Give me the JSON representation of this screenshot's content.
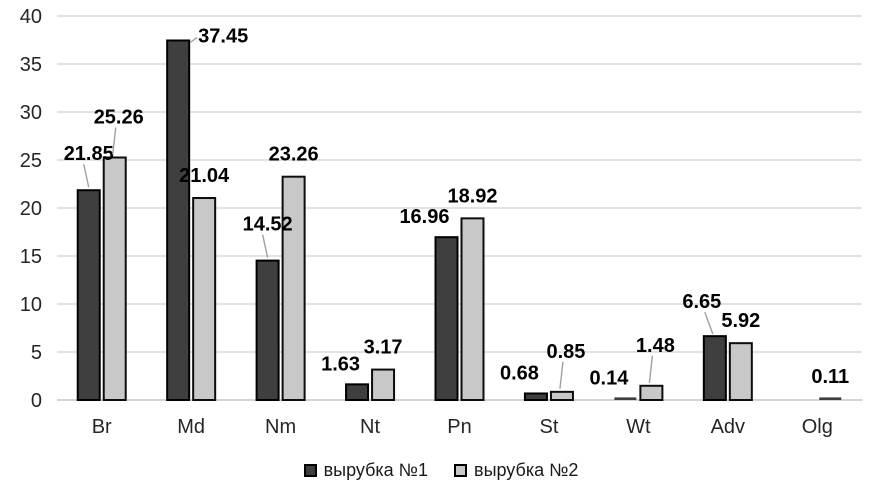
{
  "chart_data": {
    "type": "bar",
    "title": "",
    "xlabel": "",
    "ylabel": "",
    "categories": [
      "Br",
      "Md",
      "Nm",
      "Nt",
      "Pn",
      "St",
      "Wt",
      "Adv",
      "Olg"
    ],
    "series": [
      {
        "name": "вырубка №1",
        "color": "#3F3F3F",
        "border_color": "#000000",
        "values": [
          21.85,
          37.45,
          14.52,
          1.63,
          16.96,
          0.68,
          0.14,
          6.65,
          null
        ],
        "labels": [
          "21.85",
          "37.45",
          "14.52",
          "1.63",
          "16.96",
          "0.68",
          "0.14",
          "6.65",
          null
        ],
        "label_pos": [
          "left-leader",
          "right-leader",
          "left-leader",
          "left",
          "left",
          "left",
          "left",
          "above-leader",
          "none"
        ]
      },
      {
        "name": "вырубка №2",
        "color": "#C8C8C8",
        "border_color": "#0D0D0D",
        "values": [
          25.26,
          21.04,
          23.26,
          3.17,
          18.92,
          0.85,
          1.48,
          5.92,
          0.11
        ],
        "labels": [
          "25.26",
          "21.04",
          "23.26",
          "3.17",
          "18.92",
          "0.85",
          "1.48",
          "5.92",
          "0.11"
        ],
        "label_pos": [
          "above-leader",
          "above",
          "above",
          "above",
          "above",
          "above-leader",
          "above-leader",
          "above",
          "above"
        ]
      }
    ],
    "ylim": [
      0,
      40
    ],
    "ytick_step": 5,
    "ytick_labels": [
      "0",
      "5",
      "10",
      "15",
      "20",
      "25",
      "30",
      "35",
      "40"
    ],
    "grid": true,
    "gridline_color": "#D9D9D9",
    "axis_line_color": "#C6C6C6",
    "text_color": "#262626",
    "data_label_color": "#000000",
    "leader_line_color": "#A0A0A0",
    "legend_position": "bottom"
  },
  "legend": {
    "items": [
      {
        "label": "вырубка №1"
      },
      {
        "label": "вырубка №2"
      }
    ]
  }
}
